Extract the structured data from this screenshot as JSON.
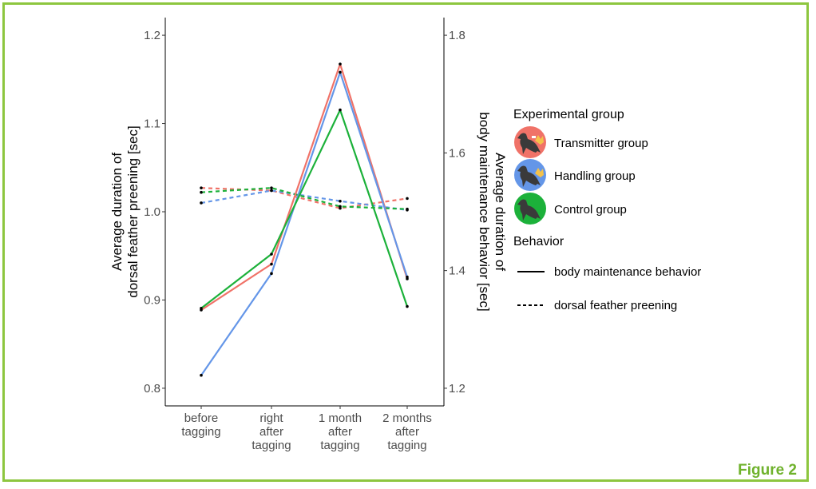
{
  "figure_label": "Figure 2",
  "colors": {
    "transmitter": "#f07268",
    "handling": "#6496e8",
    "control": "#1cb13a",
    "frame": "#8dc63f",
    "figure_label": "#6fb22c"
  },
  "chart_data": {
    "type": "line",
    "categories": [
      [
        "before",
        "tagging"
      ],
      [
        "right",
        "after",
        "tagging"
      ],
      [
        "1 month",
        "after",
        "tagging"
      ],
      [
        "2 months",
        "after",
        "tagging"
      ]
    ],
    "left_axis": {
      "label_lines": [
        "Average duration of",
        "dorsal feather preening [sec]"
      ],
      "ylim": [
        0.78,
        1.22
      ],
      "ticks": [
        0.8,
        0.9,
        1.0,
        1.1,
        1.2
      ],
      "tick_labels": [
        "0.8",
        "0.9",
        "1.0",
        "1.1",
        "1.2"
      ]
    },
    "right_axis": {
      "label_lines": [
        "Average duration of",
        "body maintenance behavior [sec]"
      ],
      "ylim": [
        1.17,
        1.83
      ],
      "ticks": [
        1.2,
        1.4,
        1.6,
        1.8
      ],
      "tick_labels": [
        "1.2",
        "1.4",
        "1.6",
        "1.8"
      ]
    },
    "series": [
      {
        "group": "transmitter",
        "behavior": "body",
        "axis": "right",
        "values": [
          1.333,
          1.411,
          1.751,
          1.386
        ]
      },
      {
        "group": "handling",
        "behavior": "body",
        "axis": "right",
        "values": [
          1.222,
          1.395,
          1.737,
          1.389
        ]
      },
      {
        "group": "control",
        "behavior": "body",
        "axis": "right",
        "values": [
          1.336,
          1.428,
          1.673,
          1.339
        ]
      },
      {
        "group": "transmitter",
        "behavior": "dorsal",
        "axis": "left",
        "values": [
          1.027,
          1.024,
          1.004,
          1.015
        ]
      },
      {
        "group": "handling",
        "behavior": "dorsal",
        "axis": "left",
        "values": [
          1.01,
          1.024,
          1.012,
          1.002
        ]
      },
      {
        "group": "control",
        "behavior": "dorsal",
        "axis": "left",
        "values": [
          1.022,
          1.027,
          1.006,
          1.003
        ]
      }
    ],
    "legend": {
      "group_title": "Experimental group",
      "groups": [
        {
          "key": "transmitter",
          "label": "Transmitter group",
          "icon": "bird-transmitter-icon"
        },
        {
          "key": "handling",
          "label": "Handling group",
          "icon": "bird-hand-icon"
        },
        {
          "key": "control",
          "label": "Control group",
          "icon": "bird-icon"
        }
      ],
      "behavior_title": "Behavior",
      "behaviors": [
        {
          "key": "body",
          "label": "body maintenance behavior",
          "linetype": "solid"
        },
        {
          "key": "dorsal",
          "label": "dorsal feather preening",
          "linetype": "dashed"
        }
      ]
    }
  }
}
